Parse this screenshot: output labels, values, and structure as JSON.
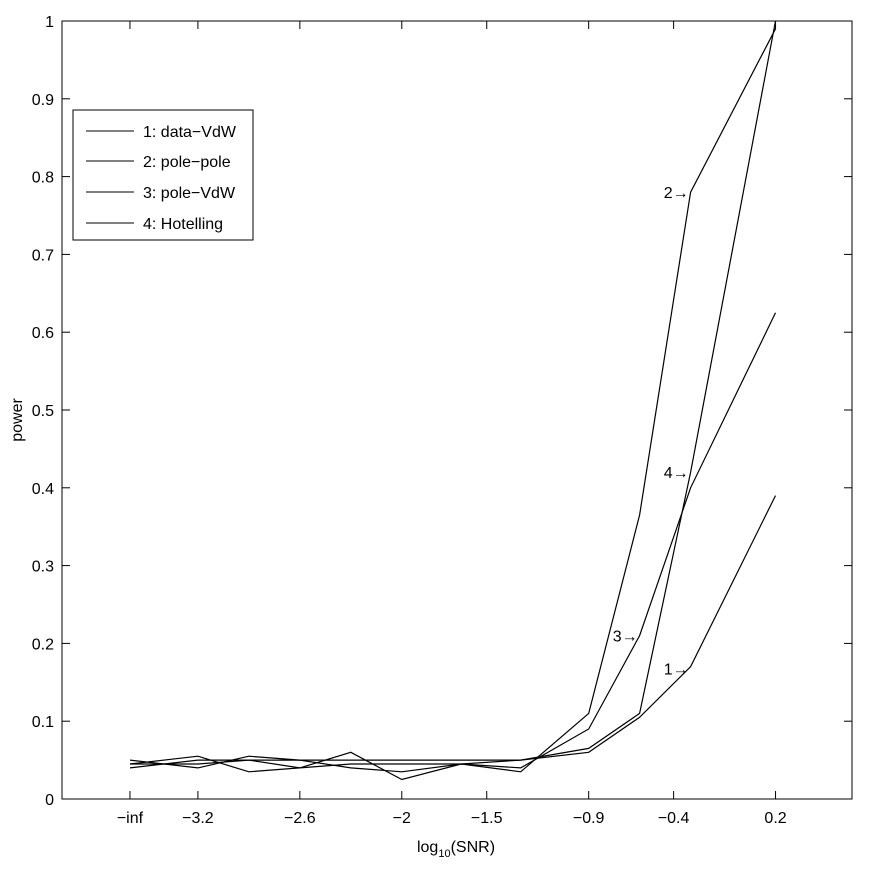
{
  "chart_data": {
    "type": "line",
    "title": "",
    "xlabel": "log",
    "xlabel_subscript": "10",
    "xlabel_suffix": "(SNR)",
    "ylabel": "power",
    "xlim": [
      -4,
      0.65
    ],
    "ylim": [
      0,
      1
    ],
    "x": [
      -3.6,
      -3.2,
      -2.9,
      -2.6,
      -2.3,
      -2.0,
      -1.65,
      -1.3,
      -0.9,
      -0.6,
      -0.3,
      0.2
    ],
    "xticks": [
      {
        "label": "−inf",
        "value": -3.6
      },
      {
        "label": "−3.2",
        "value": -3.2
      },
      {
        "label": "−2.6",
        "value": -2.6
      },
      {
        "label": "−2",
        "value": -2.0
      },
      {
        "label": "−1.5",
        "value": -1.5
      },
      {
        "label": "−0.9",
        "value": -0.9
      },
      {
        "label": "−0.4",
        "value": -0.4
      },
      {
        "label": "0.2",
        "value": 0.2
      }
    ],
    "yticks": [
      {
        "label": "0",
        "value": 0
      },
      {
        "label": "0.1",
        "value": 0.1
      },
      {
        "label": "0.2",
        "value": 0.2
      },
      {
        "label": "0.3",
        "value": 0.3
      },
      {
        "label": "0.4",
        "value": 0.4
      },
      {
        "label": "0.5",
        "value": 0.5
      },
      {
        "label": "0.6",
        "value": 0.6
      },
      {
        "label": "0.7",
        "value": 0.7
      },
      {
        "label": "0.8",
        "value": 0.8
      },
      {
        "label": "0.9",
        "value": 0.9
      },
      {
        "label": "1",
        "value": 1
      }
    ],
    "series": [
      {
        "name": "1: data−VdW",
        "values": [
          0.045,
          0.055,
          0.035,
          0.04,
          0.045,
          0.045,
          0.045,
          0.05,
          0.06,
          0.105,
          0.17,
          0.39
        ]
      },
      {
        "name": "2: pole−pole",
        "values": [
          0.04,
          0.05,
          0.05,
          0.04,
          0.06,
          0.025,
          0.045,
          0.035,
          0.11,
          0.365,
          0.78,
          0.99
        ]
      },
      {
        "name": "3: pole−VdW",
        "values": [
          0.05,
          0.04,
          0.055,
          0.05,
          0.04,
          0.035,
          0.045,
          0.04,
          0.09,
          0.21,
          0.4,
          0.625
        ]
      },
      {
        "name": "4: Hotelling",
        "values": [
          0.045,
          0.045,
          0.05,
          0.05,
          0.05,
          0.05,
          0.05,
          0.05,
          0.065,
          0.11,
          0.42,
          1.0
        ]
      }
    ],
    "annotations": [
      {
        "text": "2→",
        "x": -0.3,
        "y": 0.78
      },
      {
        "text": "4→",
        "x": -0.3,
        "y": 0.42
      },
      {
        "text": "3→",
        "x": -0.6,
        "y": 0.21
      },
      {
        "text": "1→",
        "x": -0.3,
        "y": 0.168
      }
    ],
    "legend": {
      "position": "top-left",
      "line_color": "#000000"
    },
    "grid": false,
    "line_color": "#000000"
  }
}
